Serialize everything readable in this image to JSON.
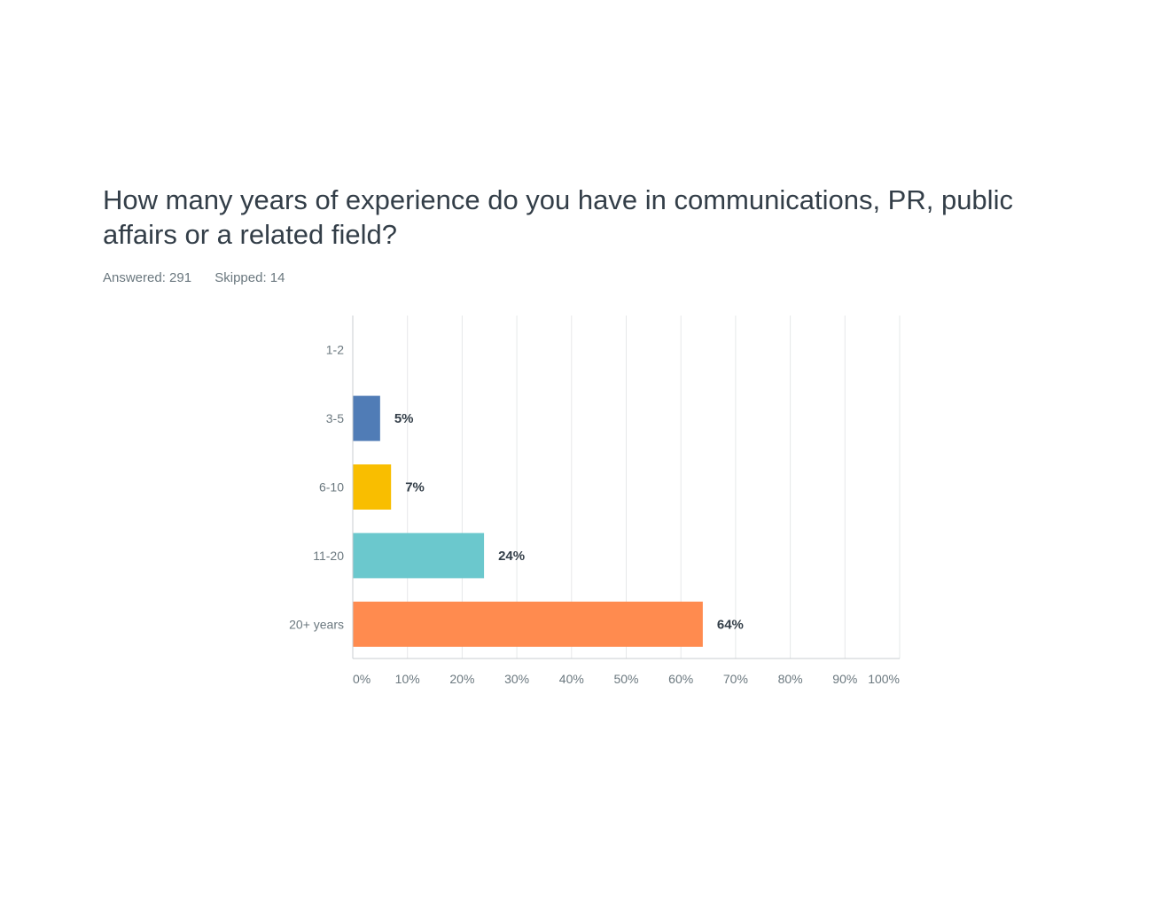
{
  "survey": {
    "question": "How many years of experience do you have in communications, PR, public affairs or a related field?",
    "answered": "Answered: 291",
    "skipped": "Skipped: 14"
  },
  "chart_data": {
    "type": "bar",
    "orientation": "horizontal",
    "categories": [
      "1-2",
      "3-5",
      "6-10",
      "11-20",
      "20+ years"
    ],
    "values": [
      0,
      5,
      7,
      24,
      64
    ],
    "value_labels": [
      "",
      "5%",
      "7%",
      "24%",
      "64%"
    ],
    "colors": [
      "#507cb6",
      "#507cb6",
      "#f9be00",
      "#6bc8cd",
      "#ff8b4f"
    ],
    "xlim": [
      0,
      100
    ],
    "xticks": [
      "0%",
      "10%",
      "20%",
      "30%",
      "40%",
      "50%",
      "60%",
      "70%",
      "80%",
      "90%",
      "100%"
    ],
    "grid": true
  }
}
